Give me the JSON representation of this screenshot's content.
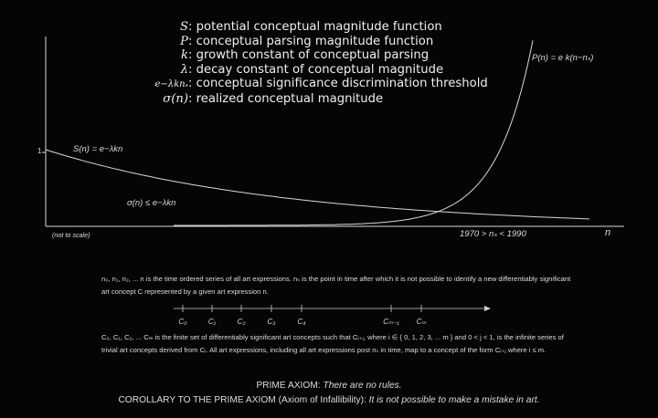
{
  "legend": [
    {
      "symbol": "S",
      "text": ": potential conceptual magnitude function"
    },
    {
      "symbol": "P",
      "text": ": conceptual parsing magnitude function"
    },
    {
      "symbol": "k",
      "text": ": growth constant of conceptual parsing"
    },
    {
      "symbol": "λ",
      "text": ": decay constant of conceptual magnitude"
    },
    {
      "symbol": "e−λknₛ",
      "text": ": conceptual significance discrimination threshold"
    },
    {
      "symbol": "σ(n)",
      "text": ": realized conceptual magnitude"
    }
  ],
  "graph": {
    "y_tick": "1",
    "s_label": "S(n) = e−λkn",
    "p_label": "P(n) = e k(n−nₛ)",
    "sigma_label": "σ(n) ≤ e−λkn",
    "not_to_scale": "(not to scale)",
    "range_label": "1970 > nₛ < 1990",
    "x_axis_label": "n"
  },
  "paragraph1": "n₀, n₁, n₂, ... n is the time ordered series of all art expressions. nₛ is the point in time after which it is not possible to identify a new differentiably significant art concept C represented by a given art expression n.",
  "timeline": {
    "ticks": [
      "C₀",
      "C₁",
      "C₂",
      "C₃",
      "C₄",
      "Cₘ₋₁",
      "Cₘ"
    ]
  },
  "paragraph2": "C₀, C₁, C₂, ... Cₘ is the finite set of differentiably significant art concepts such that Cᵢ₊ⱼ, where i ∈ { 0, 1, 2, 3, ... m } and 0 < j < 1, is the infinite series of trivial art concepts derived from Cᵢ. All art expressions, including all art expressions post nₛ in time, map to a concept of the form Cᵢ₊ⱼ where i ≤ m.",
  "axiom": {
    "prime_label": "PRIME AXIOM:",
    "prime_text": "There are no rules.",
    "corollary_label": "COROLLARY TO THE PRIME AXIOM (Axiom of Infallibility):",
    "corollary_text": "It is not possible to make a mistake in art."
  },
  "colors": {
    "background": "#050505",
    "ink": "#e9e9e9"
  }
}
